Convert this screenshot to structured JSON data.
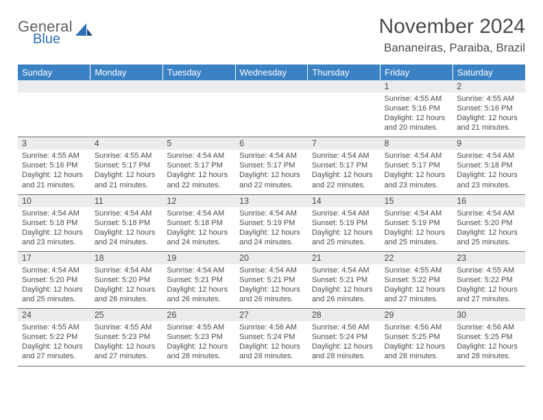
{
  "logo": {
    "general": "General",
    "blue": "Blue",
    "accent_color": "#2f6fb5"
  },
  "title": "November 2024",
  "location": "Bananeiras, Paraiba, Brazil",
  "colors": {
    "header_bg": "#3b82c4",
    "header_text": "#ffffff",
    "daynum_bg": "#ececec",
    "text": "#4a4a4a",
    "row_border": "#6b6b6b"
  },
  "day_headers": [
    "Sunday",
    "Monday",
    "Tuesday",
    "Wednesday",
    "Thursday",
    "Friday",
    "Saturday"
  ],
  "weeks": [
    [
      {
        "n": "",
        "lines": []
      },
      {
        "n": "",
        "lines": []
      },
      {
        "n": "",
        "lines": []
      },
      {
        "n": "",
        "lines": []
      },
      {
        "n": "",
        "lines": []
      },
      {
        "n": "1",
        "lines": [
          "Sunrise: 4:55 AM",
          "Sunset: 5:16 PM",
          "Daylight: 12 hours",
          "and 20 minutes."
        ]
      },
      {
        "n": "2",
        "lines": [
          "Sunrise: 4:55 AM",
          "Sunset: 5:16 PM",
          "Daylight: 12 hours",
          "and 21 minutes."
        ]
      }
    ],
    [
      {
        "n": "3",
        "lines": [
          "Sunrise: 4:55 AM",
          "Sunset: 5:16 PM",
          "Daylight: 12 hours",
          "and 21 minutes."
        ]
      },
      {
        "n": "4",
        "lines": [
          "Sunrise: 4:55 AM",
          "Sunset: 5:17 PM",
          "Daylight: 12 hours",
          "and 21 minutes."
        ]
      },
      {
        "n": "5",
        "lines": [
          "Sunrise: 4:54 AM",
          "Sunset: 5:17 PM",
          "Daylight: 12 hours",
          "and 22 minutes."
        ]
      },
      {
        "n": "6",
        "lines": [
          "Sunrise: 4:54 AM",
          "Sunset: 5:17 PM",
          "Daylight: 12 hours",
          "and 22 minutes."
        ]
      },
      {
        "n": "7",
        "lines": [
          "Sunrise: 4:54 AM",
          "Sunset: 5:17 PM",
          "Daylight: 12 hours",
          "and 22 minutes."
        ]
      },
      {
        "n": "8",
        "lines": [
          "Sunrise: 4:54 AM",
          "Sunset: 5:17 PM",
          "Daylight: 12 hours",
          "and 23 minutes."
        ]
      },
      {
        "n": "9",
        "lines": [
          "Sunrise: 4:54 AM",
          "Sunset: 5:18 PM",
          "Daylight: 12 hours",
          "and 23 minutes."
        ]
      }
    ],
    [
      {
        "n": "10",
        "lines": [
          "Sunrise: 4:54 AM",
          "Sunset: 5:18 PM",
          "Daylight: 12 hours",
          "and 23 minutes."
        ]
      },
      {
        "n": "11",
        "lines": [
          "Sunrise: 4:54 AM",
          "Sunset: 5:18 PM",
          "Daylight: 12 hours",
          "and 24 minutes."
        ]
      },
      {
        "n": "12",
        "lines": [
          "Sunrise: 4:54 AM",
          "Sunset: 5:18 PM",
          "Daylight: 12 hours",
          "and 24 minutes."
        ]
      },
      {
        "n": "13",
        "lines": [
          "Sunrise: 4:54 AM",
          "Sunset: 5:19 PM",
          "Daylight: 12 hours",
          "and 24 minutes."
        ]
      },
      {
        "n": "14",
        "lines": [
          "Sunrise: 4:54 AM",
          "Sunset: 5:19 PM",
          "Daylight: 12 hours",
          "and 25 minutes."
        ]
      },
      {
        "n": "15",
        "lines": [
          "Sunrise: 4:54 AM",
          "Sunset: 5:19 PM",
          "Daylight: 12 hours",
          "and 25 minutes."
        ]
      },
      {
        "n": "16",
        "lines": [
          "Sunrise: 4:54 AM",
          "Sunset: 5:20 PM",
          "Daylight: 12 hours",
          "and 25 minutes."
        ]
      }
    ],
    [
      {
        "n": "17",
        "lines": [
          "Sunrise: 4:54 AM",
          "Sunset: 5:20 PM",
          "Daylight: 12 hours",
          "and 25 minutes."
        ]
      },
      {
        "n": "18",
        "lines": [
          "Sunrise: 4:54 AM",
          "Sunset: 5:20 PM",
          "Daylight: 12 hours",
          "and 26 minutes."
        ]
      },
      {
        "n": "19",
        "lines": [
          "Sunrise: 4:54 AM",
          "Sunset: 5:21 PM",
          "Daylight: 12 hours",
          "and 26 minutes."
        ]
      },
      {
        "n": "20",
        "lines": [
          "Sunrise: 4:54 AM",
          "Sunset: 5:21 PM",
          "Daylight: 12 hours",
          "and 26 minutes."
        ]
      },
      {
        "n": "21",
        "lines": [
          "Sunrise: 4:54 AM",
          "Sunset: 5:21 PM",
          "Daylight: 12 hours",
          "and 26 minutes."
        ]
      },
      {
        "n": "22",
        "lines": [
          "Sunrise: 4:55 AM",
          "Sunset: 5:22 PM",
          "Daylight: 12 hours",
          "and 27 minutes."
        ]
      },
      {
        "n": "23",
        "lines": [
          "Sunrise: 4:55 AM",
          "Sunset: 5:22 PM",
          "Daylight: 12 hours",
          "and 27 minutes."
        ]
      }
    ],
    [
      {
        "n": "24",
        "lines": [
          "Sunrise: 4:55 AM",
          "Sunset: 5:22 PM",
          "Daylight: 12 hours",
          "and 27 minutes."
        ]
      },
      {
        "n": "25",
        "lines": [
          "Sunrise: 4:55 AM",
          "Sunset: 5:23 PM",
          "Daylight: 12 hours",
          "and 27 minutes."
        ]
      },
      {
        "n": "26",
        "lines": [
          "Sunrise: 4:55 AM",
          "Sunset: 5:23 PM",
          "Daylight: 12 hours",
          "and 28 minutes."
        ]
      },
      {
        "n": "27",
        "lines": [
          "Sunrise: 4:56 AM",
          "Sunset: 5:24 PM",
          "Daylight: 12 hours",
          "and 28 minutes."
        ]
      },
      {
        "n": "28",
        "lines": [
          "Sunrise: 4:56 AM",
          "Sunset: 5:24 PM",
          "Daylight: 12 hours",
          "and 28 minutes."
        ]
      },
      {
        "n": "29",
        "lines": [
          "Sunrise: 4:56 AM",
          "Sunset: 5:25 PM",
          "Daylight: 12 hours",
          "and 28 minutes."
        ]
      },
      {
        "n": "30",
        "lines": [
          "Sunrise: 4:56 AM",
          "Sunset: 5:25 PM",
          "Daylight: 12 hours",
          "and 28 minutes."
        ]
      }
    ]
  ]
}
